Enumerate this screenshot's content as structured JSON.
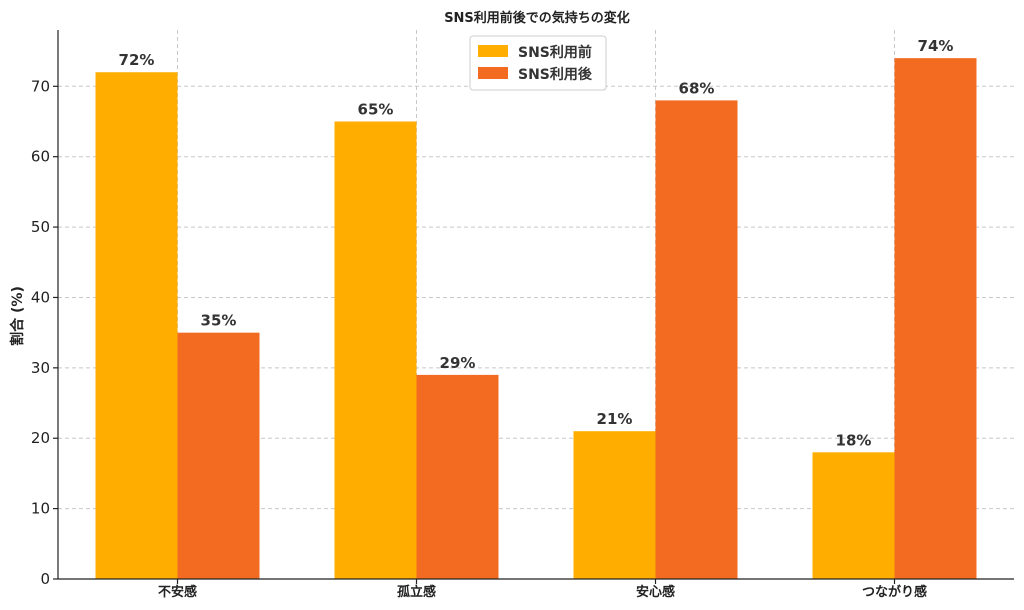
{
  "chart_data": {
    "type": "bar",
    "title": "SNS利用前後での気持ちの変化",
    "xlabel": "",
    "ylabel": "割合 (%)",
    "categories": [
      "不安感",
      "孤立感",
      "安心感",
      "つながり感"
    ],
    "series": [
      {
        "name": "SNS利用前",
        "color": "#FFAE00",
        "values": [
          72,
          65,
          21,
          18
        ],
        "labels": [
          "72%",
          "65%",
          "21%",
          "18%"
        ]
      },
      {
        "name": "SNS利用後",
        "color": "#F26B21",
        "values": [
          35,
          29,
          68,
          74
        ],
        "labels": [
          "35%",
          "29%",
          "68%",
          "74%"
        ]
      }
    ],
    "ylim": [
      0,
      78
    ],
    "yticks": [
      0,
      10,
      20,
      30,
      40,
      50,
      60,
      70
    ],
    "grid": true,
    "legend": "top-center"
  }
}
